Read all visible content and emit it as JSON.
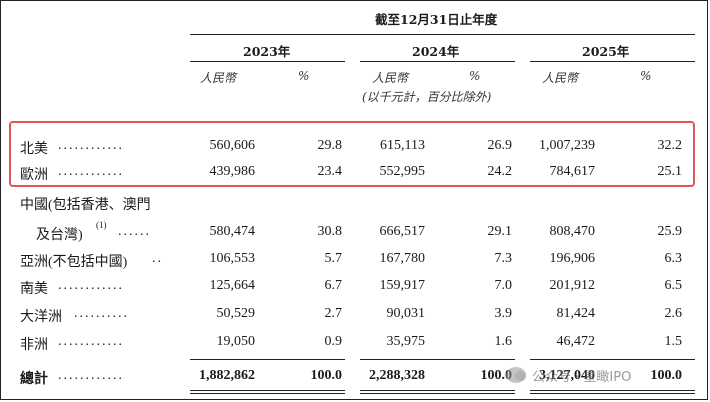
{
  "header": {
    "period": "截至12月31日止年度",
    "years": [
      "2023年",
      "2024年",
      "2025年"
    ],
    "currency_label": "人民幣",
    "percent_label": "%",
    "unit_note": "(以千元計，百分比除外)"
  },
  "rows": [
    {
      "region": "北美",
      "dots": "............",
      "v2023": "560,606",
      "p2023": "29.8",
      "v2024": "615,113",
      "p2024": "26.9",
      "v2025": "1,007,239",
      "p2025": "32.2"
    },
    {
      "region": "歐洲",
      "dots": "............",
      "v2023": "439,986",
      "p2023": "23.4",
      "v2024": "552,995",
      "p2024": "24.2",
      "v2025": "784,617",
      "p2025": "25.1"
    },
    {
      "region": "中國(包括香港、澳門",
      "dots": ""
    },
    {
      "region": "及台灣)",
      "footnote": "(1)",
      "dots": "......",
      "v2023": "580,474",
      "p2023": "30.8",
      "v2024": "666,517",
      "p2024": "29.1",
      "v2025": "808,470",
      "p2025": "25.9"
    },
    {
      "region": "亞洲(不包括中國)",
      "dots": "..",
      "v2023": "106,553",
      "p2023": "5.7",
      "v2024": "167,780",
      "p2024": "7.3",
      "v2025": "196,906",
      "p2025": "6.3"
    },
    {
      "region": "南美",
      "dots": "............",
      "v2023": "125,664",
      "p2023": "6.7",
      "v2024": "159,917",
      "p2024": "7.0",
      "v2025": "201,912",
      "p2025": "6.5"
    },
    {
      "region": "大洋洲",
      "dots": "..........",
      "v2023": "50,529",
      "p2023": "2.7",
      "v2024": "90,031",
      "p2024": "3.9",
      "v2025": "81,424",
      "p2025": "2.6"
    },
    {
      "region": "非洲",
      "dots": "............",
      "v2023": "19,050",
      "p2023": "0.9",
      "v2024": "35,975",
      "p2024": "1.6",
      "v2025": "46,472",
      "p2025": "1.5"
    }
  ],
  "total": {
    "region": "總計",
    "dots": "............",
    "v2023": "1,882,862",
    "p2023": "100.0",
    "v2024": "2,288,328",
    "p2024": "100.0",
    "v2025": "3,127,040",
    "p2025": "100.0"
  },
  "watermark": {
    "text": "公众号 · 星瞰IPO"
  }
}
